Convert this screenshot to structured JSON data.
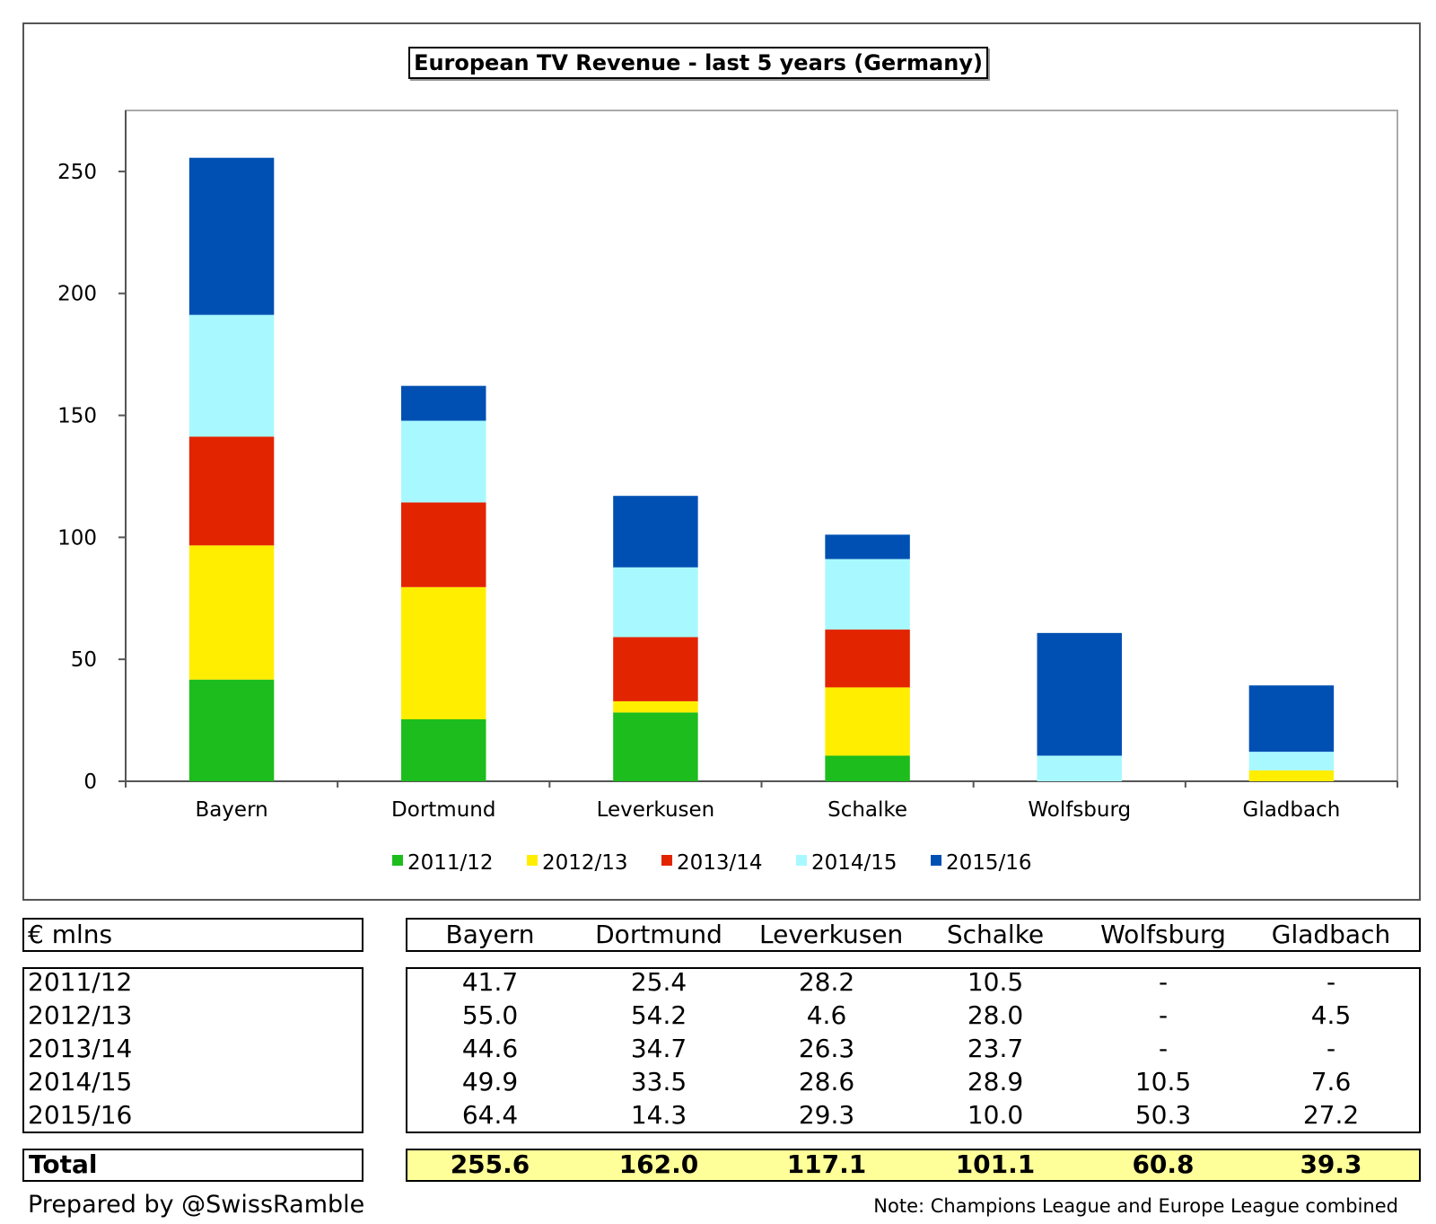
{
  "chart_data": {
    "type": "bar",
    "stacked": true,
    "title": "European TV Revenue - last 5 years (Germany)",
    "categories": [
      "Bayern",
      "Dortmund",
      "Leverkusen",
      "Schalke",
      "Wolfsburg",
      "Gladbach"
    ],
    "series": [
      {
        "name": "2011/12",
        "color": "#1cbd1c",
        "values": [
          41.7,
          25.4,
          28.2,
          10.5,
          0,
          0
        ]
      },
      {
        "name": "2012/13",
        "color": "#ffee00",
        "values": [
          55.0,
          54.2,
          4.6,
          28.0,
          0,
          4.5
        ]
      },
      {
        "name": "2013/14",
        "color": "#e32400",
        "values": [
          44.6,
          34.7,
          26.3,
          23.7,
          0,
          0
        ]
      },
      {
        "name": "2014/15",
        "color": "#a8f9ff",
        "values": [
          49.9,
          33.5,
          28.6,
          28.9,
          10.5,
          7.6
        ]
      },
      {
        "name": "2015/16",
        "color": "#0050b3",
        "values": [
          64.4,
          14.3,
          29.3,
          10.0,
          50.3,
          27.2
        ]
      }
    ],
    "yticks": [
      0,
      50,
      100,
      150,
      200,
      250
    ],
    "ylim": [
      0,
      275
    ],
    "legend": "bottom",
    "grid": false
  },
  "table": {
    "unit_label": "€ mlns",
    "columns": [
      "Bayern",
      "Dortmund",
      "Leverkusen",
      "Schalke",
      "Wolfsburg",
      "Gladbach"
    ],
    "rows": [
      {
        "label": "2011/12",
        "cells": [
          "41.7",
          "25.4",
          "28.2",
          "10.5",
          "-",
          "-"
        ]
      },
      {
        "label": "2012/13",
        "cells": [
          "55.0",
          "54.2",
          "4.6",
          "28.0",
          "-",
          "4.5"
        ]
      },
      {
        "label": "2013/14",
        "cells": [
          "44.6",
          "34.7",
          "26.3",
          "23.7",
          "-",
          "-"
        ]
      },
      {
        "label": "2014/15",
        "cells": [
          "49.9",
          "33.5",
          "28.6",
          "28.9",
          "10.5",
          "7.6"
        ]
      },
      {
        "label": "2015/16",
        "cells": [
          "64.4",
          "14.3",
          "29.3",
          "10.0",
          "50.3",
          "27.2"
        ]
      }
    ],
    "total": {
      "label": "Total",
      "cells": [
        "255.6",
        "162.0",
        "117.1",
        "101.1",
        "60.8",
        "39.3"
      ]
    },
    "total_color": "#ffff99"
  },
  "footer": {
    "credit": "Prepared by @SwissRamble",
    "note": "Note: Champions League and Europe League combined"
  }
}
